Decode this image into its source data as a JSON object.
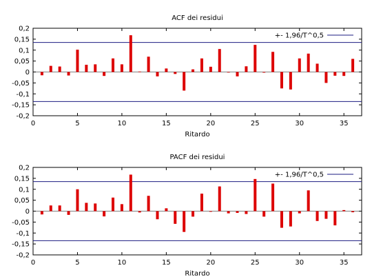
{
  "chart_data": [
    {
      "type": "bar",
      "title": "ACF dei residui",
      "xlabel": "Ritardo",
      "ylabel": "",
      "xlim": [
        0,
        37
      ],
      "ylim": [
        -0.2,
        0.2
      ],
      "xticks": [
        0,
        5,
        10,
        15,
        20,
        25,
        30,
        35
      ],
      "yticks": [
        0.2,
        0.15,
        0.1,
        0.05,
        0,
        -0.05,
        -0.1,
        -0.15,
        -0.2
      ],
      "ytick_labels": [
        "0,2",
        "0,15",
        "0,1",
        "0,05",
        "0",
        "-0,05",
        "-0,1",
        "-0,15",
        "-0,2"
      ],
      "bar_color": "#dd0000",
      "band_color": "#1a1a80",
      "band": 0.135,
      "legend": {
        "label": "+- 1,96/T^0,5",
        "position": "top-right"
      },
      "x": [
        1,
        2,
        3,
        4,
        5,
        6,
        7,
        8,
        9,
        10,
        11,
        12,
        13,
        14,
        15,
        16,
        17,
        18,
        19,
        20,
        21,
        22,
        23,
        24,
        25,
        26,
        27,
        28,
        29,
        30,
        31,
        32,
        33,
        34,
        35,
        36
      ],
      "values": [
        -0.015,
        0.028,
        0.025,
        -0.016,
        0.102,
        0.033,
        0.035,
        -0.018,
        0.062,
        0.035,
        0.168,
        0.002,
        0.07,
        -0.02,
        0.016,
        -0.009,
        -0.085,
        0.012,
        0.062,
        0.024,
        0.105,
        -0.002,
        -0.02,
        0.026,
        0.124,
        -0.003,
        0.092,
        -0.075,
        -0.08,
        0.062,
        0.084,
        0.038,
        -0.05,
        -0.017,
        -0.018,
        0.06
      ]
    },
    {
      "type": "bar",
      "title": "PACF dei residui",
      "xlabel": "Ritardo",
      "ylabel": "",
      "xlim": [
        0,
        37
      ],
      "ylim": [
        -0.2,
        0.2
      ],
      "xticks": [
        0,
        5,
        10,
        15,
        20,
        25,
        30,
        35
      ],
      "yticks": [
        0.2,
        0.15,
        0.1,
        0.05,
        0,
        -0.05,
        -0.1,
        -0.15,
        -0.2
      ],
      "ytick_labels": [
        "0,2",
        "0,15",
        "0,1",
        "0,05",
        "0",
        "-0,05",
        "-0,1",
        "-0,15",
        "-0,2"
      ],
      "bar_color": "#dd0000",
      "band_color": "#1a1a80",
      "band": 0.135,
      "legend": {
        "label": "+- 1,96/T^0,5",
        "position": "top-right"
      },
      "x": [
        1,
        2,
        3,
        4,
        5,
        6,
        7,
        8,
        9,
        10,
        11,
        12,
        13,
        14,
        15,
        16,
        17,
        18,
        19,
        20,
        21,
        22,
        23,
        24,
        25,
        26,
        27,
        28,
        29,
        30,
        31,
        32,
        33,
        34,
        35,
        36
      ],
      "values": [
        -0.015,
        0.026,
        0.026,
        -0.017,
        0.1,
        0.038,
        0.035,
        -0.024,
        0.062,
        0.032,
        0.167,
        -0.006,
        0.07,
        -0.037,
        0.013,
        -0.058,
        -0.095,
        -0.025,
        0.08,
        -0.003,
        0.113,
        -0.01,
        -0.008,
        -0.013,
        0.147,
        -0.025,
        0.126,
        -0.076,
        -0.07,
        -0.01,
        0.095,
        -0.045,
        -0.035,
        -0.065,
        0.005,
        -0.005
      ]
    }
  ]
}
